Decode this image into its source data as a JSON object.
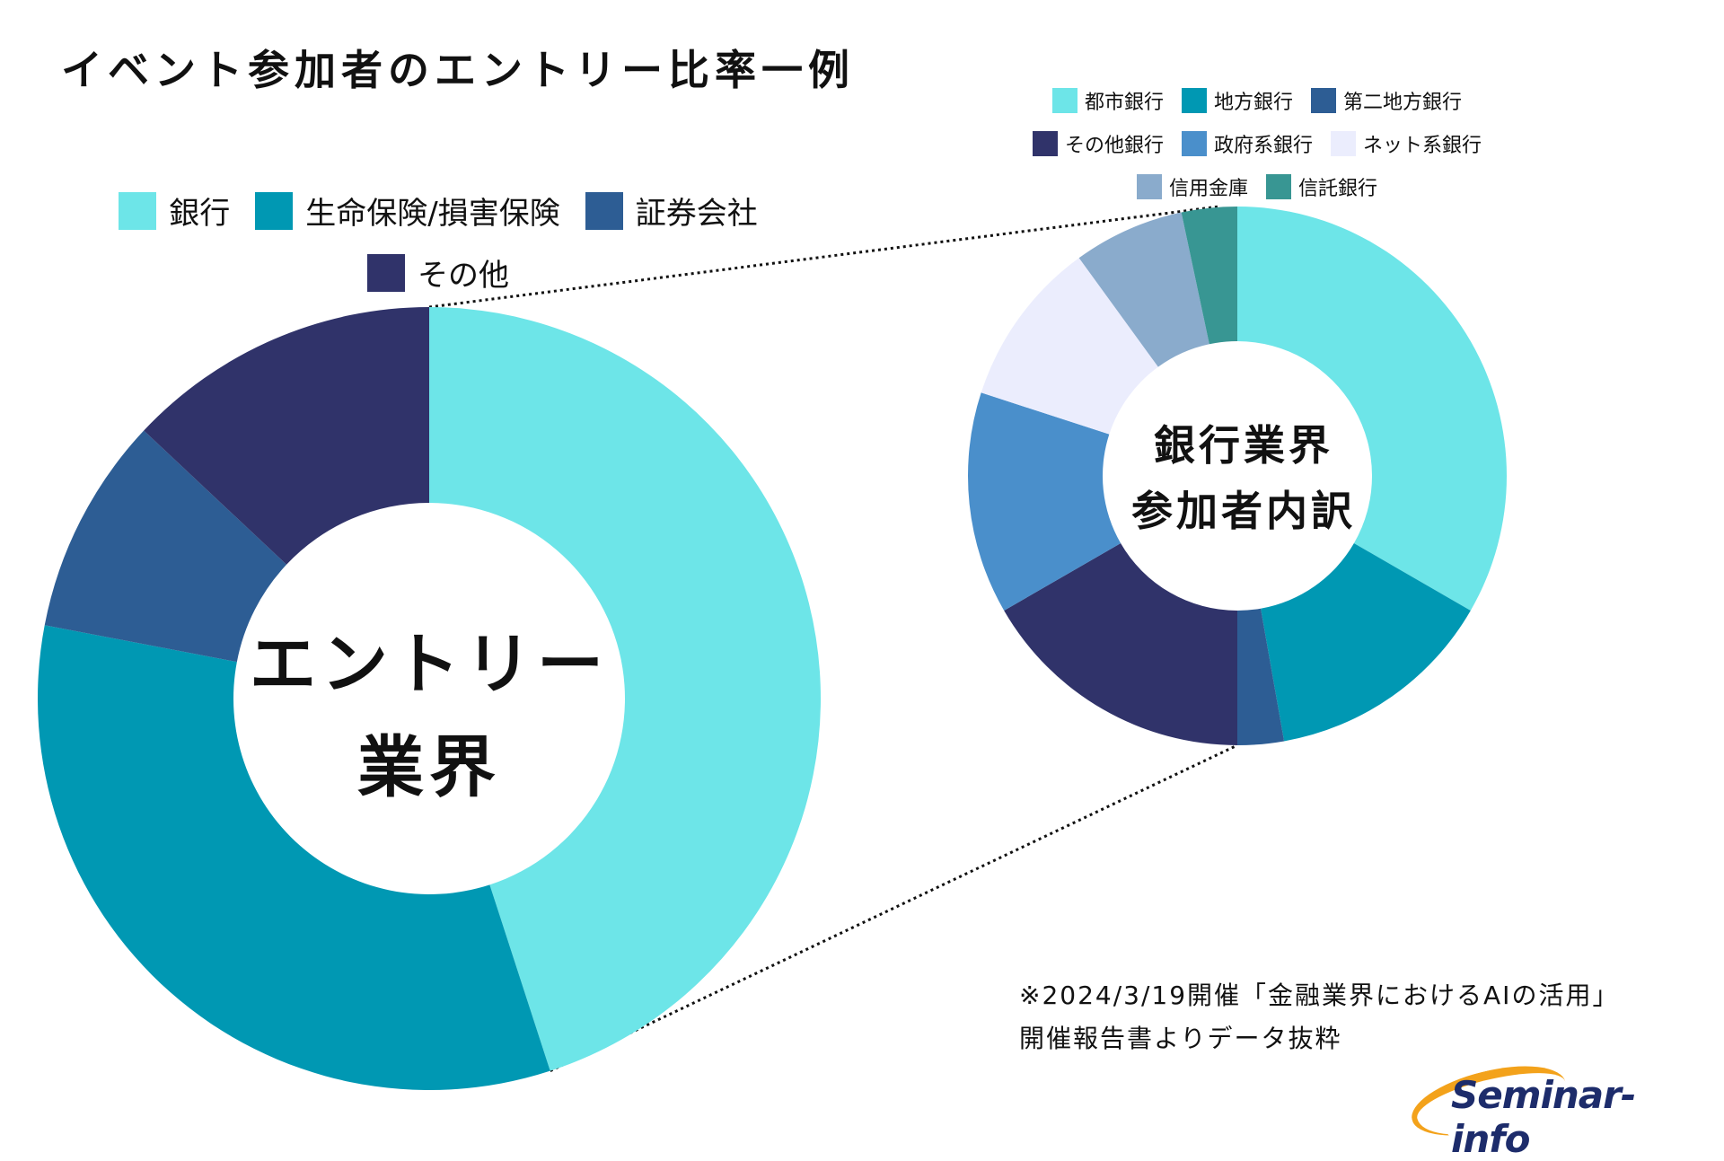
{
  "title": "イベント参加者のエントリー比率一例",
  "colors": {
    "bank": "#6de5e8",
    "insurance": "#0098b3",
    "securities": "#2d5d94",
    "other": "#30336a",
    "city_bank": "#6de5e8",
    "regional_bank": "#0098b3",
    "second_regional_bank": "#2d5d94",
    "other_bank": "#30336a",
    "gov_bank": "#4a8fcb",
    "net_bank": "#ebedfd",
    "shinkin": "#8aabcc",
    "trust_bank": "#389693"
  },
  "chart_data": [
    {
      "type": "pie",
      "subtype": "donut",
      "center_label": [
        "エントリー",
        "業界"
      ],
      "legend": [
        "銀行",
        "生命保険/損害保険",
        "証券会社",
        "その他"
      ],
      "categories": [
        "銀行",
        "生命保険/損害保険",
        "証券会社",
        "その他"
      ],
      "values": [
        45,
        33,
        9,
        13
      ],
      "unit": "%"
    },
    {
      "type": "pie",
      "subtype": "donut",
      "center_label": [
        "銀行業界",
        "参加者内訳"
      ],
      "legend": [
        "都市銀行",
        "地方銀行",
        "第二地方銀行",
        "その他銀行",
        "政府系銀行",
        "ネット系銀行",
        "信用金庫",
        "信託銀行"
      ],
      "categories": [
        "都市銀行",
        "地方銀行",
        "第二地方銀行",
        "その他銀行",
        "政府系銀行",
        "ネット系銀行",
        "信用金庫",
        "信託銀行"
      ],
      "values": [
        30,
        12.5,
        2.5,
        15,
        12,
        9,
        6,
        3
      ],
      "unit": "%"
    }
  ],
  "note": {
    "line1": "※2024/3/19開催「金融業界におけるAIの活用」",
    "line2": "開催報告書よりデータ抜粋"
  },
  "logo": {
    "text": "Seminar-info"
  }
}
